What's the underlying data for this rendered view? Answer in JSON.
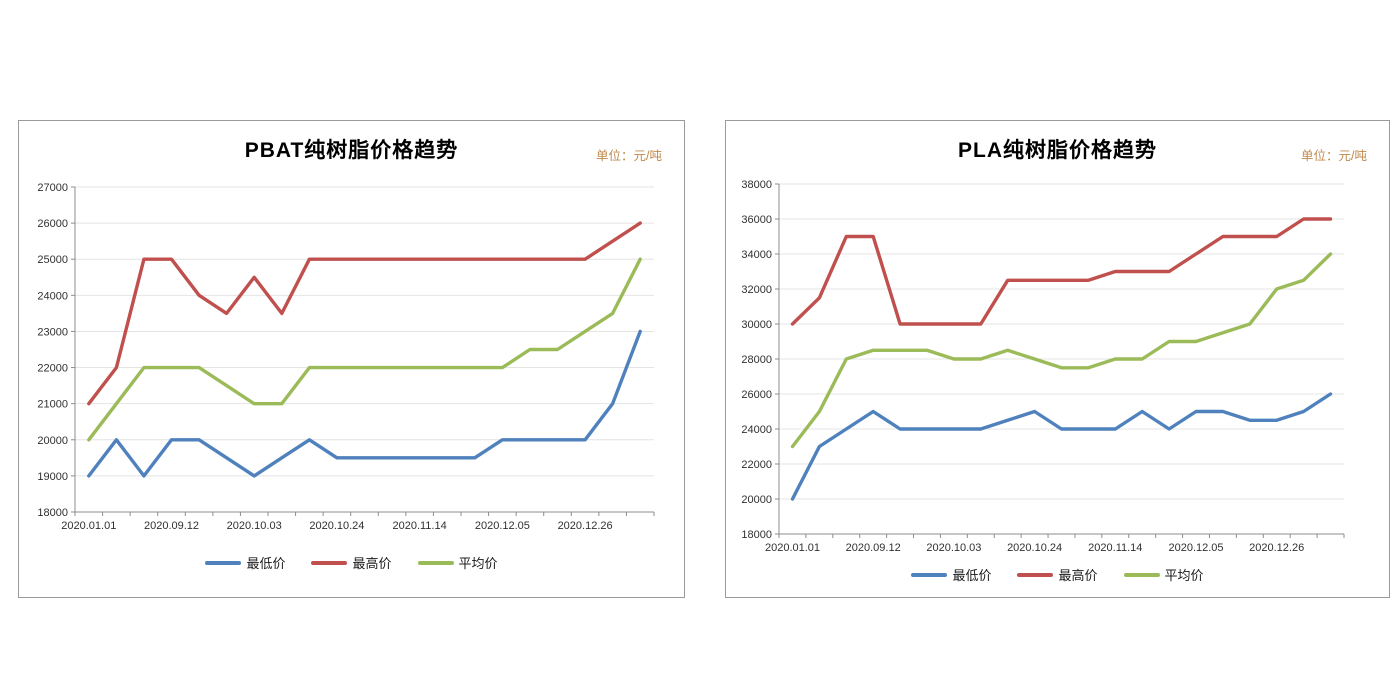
{
  "colors": {
    "min_price": "#4F81BD",
    "max_price": "#C0504D",
    "avg_price": "#9BBB59",
    "gridline": "#E4E4E4",
    "axis": "#8C8C8C",
    "unit_text": "#BF8A4D",
    "card_border": "#9A9A9A"
  },
  "chart_data": [
    {
      "id": "pbat",
      "type": "line",
      "title": "PBAT纯树脂价格趋势",
      "unit": "单位：元/吨",
      "n_points": 21,
      "label_every": 3,
      "x_labels": [
        "2020.01.01",
        "2020.09.12",
        "2020.10.03",
        "2020.10.24",
        "2020.11.14",
        "2020.12.05",
        "2020.12.26"
      ],
      "ylim": [
        18000,
        27000
      ],
      "ytick_step": 1000,
      "grid": true,
      "legend_position": "bottom",
      "series": [
        {
          "name": "最低价",
          "color": "#4F81BD",
          "values": [
            19000,
            20000,
            19000,
            20000,
            20000,
            19500,
            19000,
            19500,
            20000,
            19500,
            19500,
            19500,
            19500,
            19500,
            19500,
            20000,
            20000,
            20000,
            20000,
            21000,
            23000
          ]
        },
        {
          "name": "最高价",
          "color": "#C0504D",
          "values": [
            21000,
            22000,
            25000,
            25000,
            24000,
            23500,
            24500,
            23500,
            25000,
            25000,
            25000,
            25000,
            25000,
            25000,
            25000,
            25000,
            25000,
            25000,
            25000,
            25500,
            26000
          ]
        },
        {
          "name": "平均价",
          "color": "#9BBB59",
          "values": [
            20000,
            21000,
            22000,
            22000,
            22000,
            21500,
            21000,
            21000,
            22000,
            22000,
            22000,
            22000,
            22000,
            22000,
            22000,
            22000,
            22500,
            22500,
            23000,
            23500,
            25000
          ]
        }
      ]
    },
    {
      "id": "pla",
      "type": "line",
      "title": "PLA纯树脂价格趋势",
      "unit": "单位：元/吨",
      "n_points": 21,
      "label_every": 3,
      "x_labels": [
        "2020.01.01",
        "2020.09.12",
        "2020.10.03",
        "2020.10.24",
        "2020.11.14",
        "2020.12.05",
        "2020.12.26"
      ],
      "ylim": [
        18000,
        38000
      ],
      "ytick_step": 2000,
      "grid": true,
      "legend_position": "bottom",
      "series": [
        {
          "name": "最低价",
          "color": "#4F81BD",
          "values": [
            20000,
            23000,
            24000,
            25000,
            24000,
            24000,
            24000,
            24000,
            24500,
            25000,
            24000,
            24000,
            24000,
            25000,
            24000,
            25000,
            25000,
            24500,
            24500,
            25000,
            26000
          ]
        },
        {
          "name": "最高价",
          "color": "#C0504D",
          "values": [
            30000,
            31500,
            35000,
            35000,
            30000,
            30000,
            30000,
            30000,
            32500,
            32500,
            32500,
            32500,
            33000,
            33000,
            33000,
            34000,
            35000,
            35000,
            35000,
            36000,
            36000
          ]
        },
        {
          "name": "平均价",
          "color": "#9BBB59",
          "values": [
            23000,
            25000,
            28000,
            28500,
            28500,
            28500,
            28000,
            28000,
            28500,
            28000,
            27500,
            27500,
            28000,
            28000,
            29000,
            29000,
            29500,
            30000,
            32000,
            32500,
            34000
          ]
        }
      ]
    }
  ]
}
